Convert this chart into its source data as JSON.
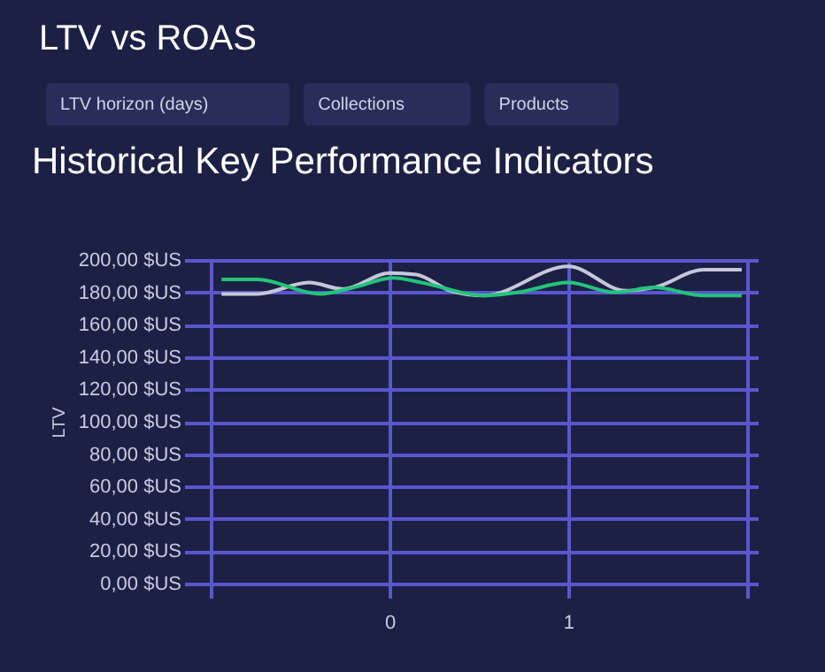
{
  "chart_data": {
    "type": "line",
    "title": "LTV vs ROAS",
    "subtitle": "Historical Key Performance Indicators",
    "ylabel": "LTV",
    "annotations": [
      "LTV horizon (days)",
      "Collections",
      "Products"
    ],
    "xlim": [
      -1.07,
      2.06
    ],
    "xticks": [
      {
        "value": -1,
        "label": null
      },
      0,
      1,
      {
        "value": 2,
        "label": null
      }
    ],
    "ylim": [
      0,
      200
    ],
    "yticks": [
      {
        "value": 0,
        "label": "0,00 $US"
      },
      {
        "value": 20,
        "label": "20,00 $US"
      },
      {
        "value": 40,
        "label": "40,00 $US"
      },
      {
        "value": 60,
        "label": "60,00 $US"
      },
      {
        "value": 80,
        "label": "80,00 $US"
      },
      {
        "value": 100,
        "label": "100,00 $US"
      },
      {
        "value": 120,
        "label": "120,00 $US"
      },
      {
        "value": 140,
        "label": "140,00 $US"
      },
      {
        "value": 160,
        "label": "160,00 $US"
      },
      {
        "value": 180,
        "label": "180,00 $US"
      },
      {
        "value": 200,
        "label": "200,00 $US"
      }
    ],
    "grid": true,
    "legend": false,
    "marker": "none",
    "line_style": "solid",
    "series": [
      {
        "color": "#c5c8da",
        "x": [
          -0.94,
          -0.74,
          -0.45,
          -0.26,
          0.0,
          0.15,
          0.34,
          0.53,
          1.0,
          1.32,
          1.48,
          1.76,
          1.97
        ],
        "values": [
          179,
          179,
          186,
          182,
          192,
          191,
          181,
          178,
          196,
          181,
          183,
          194,
          194
        ]
      },
      {
        "color": "#22c47a",
        "x": [
          -0.94,
          -0.74,
          -0.39,
          -0.2,
          0.02,
          0.18,
          0.53,
          0.72,
          1.0,
          1.26,
          1.48,
          1.76,
          1.97
        ],
        "values": [
          188,
          188,
          179,
          183,
          189,
          186,
          178,
          180,
          186,
          180,
          183,
          178,
          178
        ]
      }
    ]
  }
}
